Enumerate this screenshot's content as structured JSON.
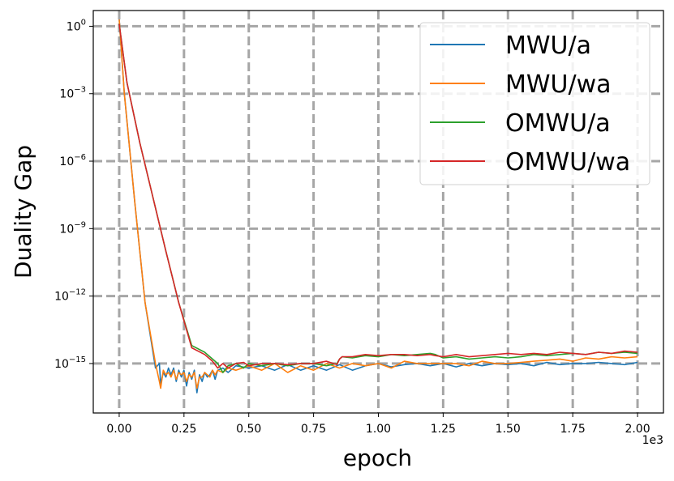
{
  "chart_data": {
    "type": "line",
    "title": "",
    "xlabel": "epoch",
    "ylabel": "Duality Gap",
    "x_scale_label": "1e3",
    "y_scale": "log",
    "xlim": [
      -0.1,
      2.1
    ],
    "ylim_exp": [
      -17.2,
      0.7
    ],
    "grid": true,
    "grid_style": "dashed",
    "legend_position": "top-right",
    "x_ticks": [
      {
        "v": 0.0,
        "label": "0.00"
      },
      {
        "v": 0.25,
        "label": "0.25"
      },
      {
        "v": 0.5,
        "label": "0.50"
      },
      {
        "v": 0.75,
        "label": "0.75"
      },
      {
        "v": 1.0,
        "label": "1.00"
      },
      {
        "v": 1.25,
        "label": "1.25"
      },
      {
        "v": 1.5,
        "label": "1.50"
      },
      {
        "v": 1.75,
        "label": "1.75"
      },
      {
        "v": 2.0,
        "label": "2.00"
      }
    ],
    "y_ticks": [
      {
        "exp": 0,
        "base": "10",
        "sup": "0"
      },
      {
        "exp": -3,
        "base": "10",
        "sup": "−3"
      },
      {
        "exp": -6,
        "base": "10",
        "sup": "−6"
      },
      {
        "exp": -9,
        "base": "10",
        "sup": "−9"
      },
      {
        "exp": -12,
        "base": "10",
        "sup": "−12"
      },
      {
        "exp": -15,
        "base": "10",
        "sup": "−15"
      }
    ],
    "series": [
      {
        "name": "MWU/a",
        "color": "#1f77b4",
        "x": [
          0.0,
          0.02,
          0.06,
          0.1,
          0.14,
          0.155,
          0.16,
          0.17,
          0.18,
          0.19,
          0.2,
          0.21,
          0.22,
          0.23,
          0.24,
          0.25,
          0.26,
          0.27,
          0.28,
          0.29,
          0.3,
          0.31,
          0.32,
          0.33,
          0.34,
          0.35,
          0.36,
          0.37,
          0.38,
          0.4,
          0.42,
          0.45,
          0.5,
          0.55,
          0.6,
          0.65,
          0.7,
          0.75,
          0.8,
          0.85,
          0.9,
          0.95,
          1.0,
          1.05,
          1.1,
          1.15,
          1.2,
          1.25,
          1.3,
          1.35,
          1.4,
          1.45,
          1.5,
          1.55,
          1.6,
          1.65,
          1.7,
          1.75,
          1.8,
          1.85,
          1.9,
          1.95,
          2.0
        ],
        "y": [
          0.3,
          -3.0,
          -7.8,
          -12.3,
          -15.2,
          -15.0,
          -15.9,
          -15.4,
          -15.6,
          -15.2,
          -15.5,
          -15.2,
          -15.8,
          -15.3,
          -15.6,
          -15.3,
          -16.0,
          -15.4,
          -15.7,
          -15.3,
          -16.3,
          -15.5,
          -15.8,
          -15.4,
          -15.6,
          -15.5,
          -15.3,
          -15.7,
          -15.3,
          -15.2,
          -15.4,
          -15.1,
          -15.2,
          -15.1,
          -15.3,
          -15.05,
          -15.3,
          -15.1,
          -15.3,
          -15.05,
          -15.3,
          -15.1,
          -15.0,
          -15.15,
          -15.05,
          -15.0,
          -15.1,
          -15.0,
          -15.15,
          -15.0,
          -15.1,
          -15.0,
          -15.05,
          -15.0,
          -15.1,
          -14.95,
          -15.05,
          -15.0,
          -15.0,
          -14.95,
          -15.0,
          -15.05,
          -14.95
        ]
      },
      {
        "name": "MWU/wa",
        "color": "#ff7f0e",
        "x": [
          0.0,
          0.02,
          0.06,
          0.1,
          0.14,
          0.155,
          0.16,
          0.17,
          0.18,
          0.19,
          0.2,
          0.21,
          0.22,
          0.23,
          0.24,
          0.25,
          0.26,
          0.27,
          0.28,
          0.29,
          0.3,
          0.31,
          0.32,
          0.33,
          0.34,
          0.35,
          0.36,
          0.37,
          0.38,
          0.4,
          0.42,
          0.45,
          0.5,
          0.55,
          0.6,
          0.65,
          0.7,
          0.75,
          0.8,
          0.85,
          0.9,
          0.95,
          1.0,
          1.05,
          1.1,
          1.15,
          1.2,
          1.25,
          1.3,
          1.35,
          1.4,
          1.45,
          1.5,
          1.55,
          1.6,
          1.65,
          1.7,
          1.75,
          1.8,
          1.85,
          1.9,
          1.95,
          2.0
        ],
        "y": [
          0.3,
          -3.0,
          -7.8,
          -12.3,
          -15.0,
          -15.8,
          -16.1,
          -15.3,
          -15.5,
          -15.4,
          -15.6,
          -15.3,
          -15.7,
          -15.4,
          -15.5,
          -15.4,
          -15.8,
          -15.5,
          -15.6,
          -15.4,
          -16.1,
          -15.6,
          -15.6,
          -15.4,
          -15.5,
          -15.6,
          -15.3,
          -15.5,
          -15.3,
          -15.4,
          -15.2,
          -15.3,
          -15.1,
          -15.3,
          -15.0,
          -15.4,
          -15.1,
          -15.3,
          -15.0,
          -15.2,
          -15.0,
          -15.1,
          -15.0,
          -15.2,
          -14.9,
          -15.0,
          -15.0,
          -15.0,
          -15.0,
          -15.1,
          -14.9,
          -15.0,
          -15.0,
          -14.95,
          -14.9,
          -14.85,
          -14.8,
          -14.9,
          -14.75,
          -14.8,
          -14.7,
          -14.75,
          -14.7
        ]
      },
      {
        "name": "OMWU/a",
        "color": "#2ca02c",
        "x": [
          0.0,
          0.03,
          0.08,
          0.13,
          0.18,
          0.23,
          0.28,
          0.33,
          0.36,
          0.38,
          0.4,
          0.42,
          0.45,
          0.48,
          0.5,
          0.55,
          0.6,
          0.65,
          0.7,
          0.75,
          0.8,
          0.84,
          0.85,
          0.86,
          0.9,
          0.95,
          1.0,
          1.05,
          1.1,
          1.15,
          1.2,
          1.22,
          1.25,
          1.3,
          1.35,
          1.4,
          1.45,
          1.5,
          1.55,
          1.6,
          1.65,
          1.7,
          1.75,
          1.8,
          1.85,
          1.9,
          1.95,
          2.0
        ],
        "y": [
          0.1,
          -2.5,
          -5.2,
          -7.6,
          -10.0,
          -12.3,
          -14.2,
          -14.5,
          -14.8,
          -15.0,
          -15.4,
          -15.1,
          -15.0,
          -15.2,
          -15.0,
          -15.1,
          -15.0,
          -15.1,
          -15.0,
          -15.0,
          -15.1,
          -15.0,
          -14.8,
          -14.7,
          -14.75,
          -14.65,
          -14.7,
          -14.6,
          -14.65,
          -14.6,
          -14.55,
          -14.6,
          -14.75,
          -14.7,
          -14.8,
          -14.75,
          -14.7,
          -14.75,
          -14.7,
          -14.6,
          -14.65,
          -14.6,
          -14.55,
          -14.6,
          -14.5,
          -14.55,
          -14.5,
          -14.55
        ]
      },
      {
        "name": "OMWU/wa",
        "color": "#d62728",
        "x": [
          0.0,
          0.03,
          0.08,
          0.13,
          0.18,
          0.23,
          0.28,
          0.33,
          0.36,
          0.38,
          0.4,
          0.42,
          0.45,
          0.48,
          0.5,
          0.55,
          0.6,
          0.65,
          0.7,
          0.75,
          0.8,
          0.84,
          0.85,
          0.86,
          0.9,
          0.95,
          1.0,
          1.05,
          1.1,
          1.15,
          1.2,
          1.22,
          1.25,
          1.3,
          1.35,
          1.4,
          1.45,
          1.5,
          1.55,
          1.6,
          1.65,
          1.7,
          1.75,
          1.8,
          1.85,
          1.9,
          1.95,
          2.0
        ],
        "y": [
          0.1,
          -2.5,
          -5.2,
          -7.6,
          -10.0,
          -12.3,
          -14.3,
          -14.6,
          -14.9,
          -15.2,
          -15.0,
          -15.2,
          -15.0,
          -14.95,
          -15.1,
          -15.0,
          -15.0,
          -15.05,
          -15.0,
          -15.0,
          -14.9,
          -15.05,
          -14.8,
          -14.7,
          -14.7,
          -14.6,
          -14.65,
          -14.6,
          -14.6,
          -14.65,
          -14.6,
          -14.65,
          -14.7,
          -14.6,
          -14.7,
          -14.65,
          -14.6,
          -14.55,
          -14.6,
          -14.55,
          -14.6,
          -14.5,
          -14.55,
          -14.6,
          -14.5,
          -14.55,
          -14.45,
          -14.5
        ]
      }
    ]
  }
}
